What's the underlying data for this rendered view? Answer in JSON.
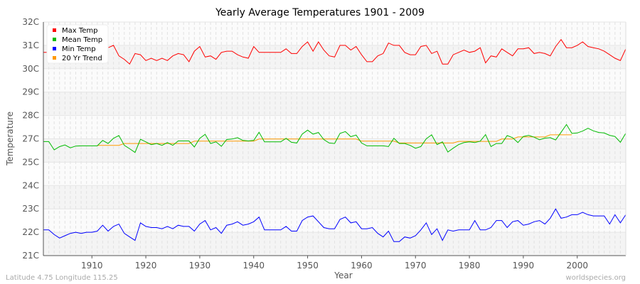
{
  "chart_data": {
    "type": "line",
    "title": "Yearly Average Temperatures 1901 - 2009",
    "xlabel": "Year",
    "ylabel": "Temperature",
    "start_year": 1901,
    "end_year": 2009,
    "x_ticks": [
      1910,
      1920,
      1930,
      1940,
      1950,
      1960,
      1970,
      1980,
      1990,
      2000
    ],
    "y_ticks": [
      32,
      31,
      30,
      29,
      28,
      27,
      25,
      24,
      23,
      22,
      21
    ],
    "y_tick_labels": [
      "32C",
      "31C",
      "30C",
      "29C",
      "28C",
      "27C",
      "25C",
      "24C",
      "23C",
      "22C",
      "21C"
    ],
    "grid": true,
    "legend_position": "top-left",
    "series": [
      {
        "name": "Max Temp",
        "color": "#ff0000",
        "values": [
          30.7,
          30.7,
          30.7,
          30.65,
          30.6,
          30.6,
          30.55,
          30.6,
          30.55,
          30.6,
          30.65,
          30.8,
          30.9,
          31.0,
          30.55,
          30.4,
          30.2,
          30.65,
          30.6,
          30.35,
          30.45,
          30.35,
          30.45,
          30.35,
          30.55,
          30.65,
          30.6,
          30.3,
          30.75,
          30.95,
          30.5,
          30.55,
          30.4,
          30.7,
          30.75,
          30.75,
          30.6,
          30.5,
          30.45,
          30.95,
          30.7,
          30.7,
          30.7,
          30.7,
          30.7,
          30.85,
          30.65,
          30.65,
          30.95,
          31.15,
          30.75,
          31.15,
          30.8,
          30.55,
          30.5,
          31.0,
          31.0,
          30.8,
          30.95,
          30.6,
          30.3,
          30.3,
          30.55,
          30.65,
          31.1,
          31.0,
          31.0,
          30.7,
          30.6,
          30.6,
          30.95,
          31.0,
          30.65,
          30.75,
          30.2,
          30.2,
          30.6,
          30.7,
          30.8,
          30.7,
          30.75,
          30.9,
          30.25,
          30.55,
          30.5,
          30.85,
          30.7,
          30.55,
          30.85,
          30.85,
          30.9,
          30.65,
          30.7,
          30.65,
          30.55,
          30.95,
          31.25,
          30.9,
          30.9,
          31.0,
          31.15,
          30.95,
          30.9,
          30.85,
          30.75,
          30.6,
          30.45,
          30.35,
          30.85
        ]
      },
      {
        "name": "Mean Temp",
        "color": "#00bb00",
        "values": [
          26.76,
          26.76,
          26.05,
          26.33,
          26.47,
          26.23,
          26.38,
          26.4,
          26.4,
          26.4,
          26.4,
          26.86,
          26.6,
          27.02,
          27.14,
          26.44,
          26.15,
          25.83,
          26.96,
          26.74,
          26.5,
          26.6,
          26.44,
          26.68,
          26.44,
          26.82,
          26.82,
          26.82,
          26.3,
          27.02,
          27.19,
          26.6,
          26.74,
          26.36,
          26.94,
          26.98,
          27.05,
          26.86,
          26.82,
          26.86,
          27.28,
          26.74,
          26.74,
          26.74,
          26.74,
          27.02,
          26.7,
          26.64,
          27.2,
          27.37,
          27.2,
          27.27,
          26.94,
          26.64,
          26.6,
          27.23,
          27.31,
          27.09,
          27.16,
          26.64,
          26.4,
          26.4,
          26.4,
          26.4,
          26.34,
          27.02,
          26.6,
          26.6,
          26.44,
          26.19,
          26.34,
          27.0,
          27.17,
          26.5,
          26.74,
          25.87,
          26.2,
          26.5,
          26.68,
          26.74,
          26.68,
          26.8,
          27.18,
          26.34,
          26.6,
          26.6,
          27.14,
          27.05,
          26.68,
          27.1,
          27.15,
          27.07,
          26.92,
          27.03,
          27.05,
          26.9,
          27.28,
          27.61,
          27.23,
          27.25,
          27.33,
          27.45,
          27.34,
          27.27,
          27.25,
          27.15,
          27.1,
          26.7,
          27.24
        ]
      },
      {
        "name": "Min Temp",
        "color": "#0000ff",
        "values": [
          22.1,
          22.1,
          21.9,
          21.75,
          21.85,
          21.95,
          22.0,
          21.95,
          22.0,
          22.0,
          22.05,
          22.3,
          22.05,
          22.25,
          22.35,
          21.95,
          21.8,
          21.65,
          22.4,
          22.25,
          22.2,
          22.2,
          22.15,
          22.25,
          22.15,
          22.3,
          22.25,
          22.25,
          22.05,
          22.35,
          22.5,
          22.1,
          22.2,
          21.95,
          22.3,
          22.35,
          22.45,
          22.3,
          22.35,
          22.45,
          22.65,
          22.1,
          22.1,
          22.1,
          22.1,
          22.25,
          22.05,
          22.05,
          22.5,
          22.65,
          22.7,
          22.45,
          22.2,
          22.15,
          22.15,
          22.55,
          22.65,
          22.4,
          22.45,
          22.15,
          22.15,
          22.2,
          21.95,
          21.8,
          22.05,
          21.6,
          21.6,
          21.8,
          21.75,
          21.85,
          22.1,
          22.4,
          21.9,
          22.15,
          21.65,
          22.1,
          22.05,
          22.1,
          22.1,
          22.1,
          22.5,
          22.1,
          22.1,
          22.2,
          22.5,
          22.5,
          22.2,
          22.45,
          22.5,
          22.3,
          22.35,
          22.45,
          22.5,
          22.35,
          22.6,
          23.0,
          22.6,
          22.65,
          22.75,
          22.75,
          22.85,
          22.75,
          22.7,
          22.7,
          22.7,
          22.35,
          22.75,
          22.4,
          22.75
        ]
      },
      {
        "name": "20 Yr Trend",
        "color": "#ff9900",
        "values": [
          null,
          null,
          null,
          null,
          null,
          null,
          null,
          null,
          null,
          null,
          26.44,
          26.44,
          26.44,
          26.44,
          26.44,
          26.6,
          26.6,
          26.6,
          26.6,
          26.6,
          26.6,
          26.6,
          26.6,
          26.6,
          26.6,
          26.6,
          26.6,
          26.6,
          26.8,
          26.8,
          26.8,
          26.8,
          26.8,
          26.8,
          26.8,
          26.8,
          26.8,
          26.8,
          26.8,
          26.8,
          26.98,
          26.98,
          26.98,
          26.98,
          26.98,
          26.98,
          26.98,
          26.98,
          26.98,
          26.98,
          26.98,
          26.98,
          26.98,
          26.98,
          26.98,
          26.98,
          26.98,
          26.98,
          26.98,
          26.8,
          26.8,
          26.8,
          26.8,
          26.8,
          26.8,
          26.8,
          26.64,
          26.64,
          26.64,
          26.64,
          26.64,
          26.64,
          26.64,
          26.64,
          26.64,
          26.64,
          26.64,
          26.78,
          26.78,
          26.78,
          26.78,
          26.78,
          26.78,
          26.78,
          26.78,
          26.98,
          26.98,
          26.98,
          27.08,
          27.08,
          27.08,
          27.08,
          27.08,
          27.08,
          27.17,
          27.17,
          27.17,
          27.17,
          27.17,
          null,
          null,
          null,
          null,
          null,
          null,
          null,
          null,
          null,
          null
        ]
      }
    ]
  },
  "footer": {
    "location": "Latitude 4.75 Longitude 115.25",
    "site": "worldspecies.org"
  }
}
